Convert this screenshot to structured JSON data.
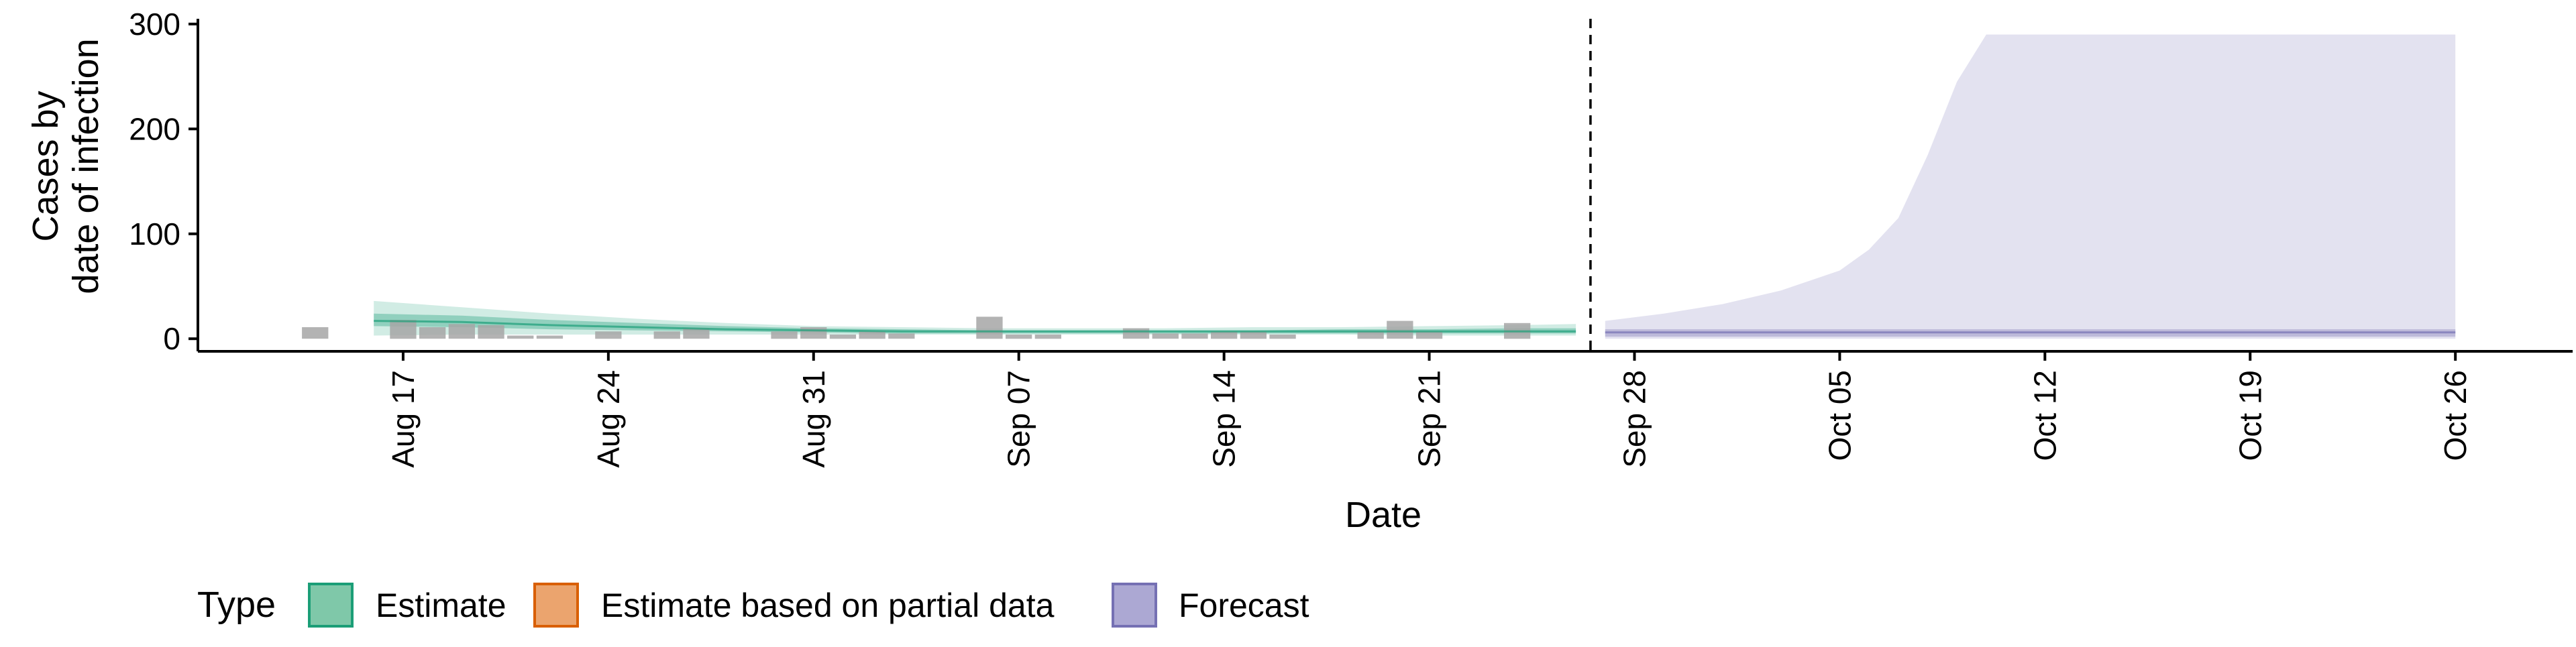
{
  "chart_data": {
    "type": "area",
    "xlabel": "Date",
    "ylabel_lines": [
      "Cases by",
      "date of infection"
    ],
    "x_range": [
      "2020-08-10",
      "2020-10-30"
    ],
    "ylim": [
      -12,
      305
    ],
    "y_ticks": [
      0,
      100,
      200,
      300
    ],
    "x_ticks": [
      {
        "date": "2020-08-17",
        "label": "Aug 17"
      },
      {
        "date": "2020-08-24",
        "label": "Aug 24"
      },
      {
        "date": "2020-08-31",
        "label": "Aug 31"
      },
      {
        "date": "2020-09-07",
        "label": "Sep 07"
      },
      {
        "date": "2020-09-14",
        "label": "Sep 14"
      },
      {
        "date": "2020-09-21",
        "label": "Sep 21"
      },
      {
        "date": "2020-09-28",
        "label": "Sep 28"
      },
      {
        "date": "2020-10-05",
        "label": "Oct 05"
      },
      {
        "date": "2020-10-12",
        "label": "Oct 12"
      },
      {
        "date": "2020-10-19",
        "label": "Oct 19"
      },
      {
        "date": "2020-10-26",
        "label": "Oct 26"
      }
    ],
    "forecast_cutoff": "2020-09-26",
    "grid": false,
    "legend": {
      "title": "Type",
      "position": "bottom-left",
      "entries": [
        {
          "label": "Estimate",
          "fill": "#7fc8a9",
          "stroke": "#1b9e77"
        },
        {
          "label": "Estimate based on partial data",
          "fill": "#eba46e",
          "stroke": "#d95f02"
        },
        {
          "label": "Forecast",
          "fill": "#aca8d3",
          "stroke": "#7570b3"
        }
      ]
    },
    "observed_cases": {
      "color": "#a6a6a6",
      "dates": [
        "2020-08-14",
        "2020-08-15",
        "2020-08-16",
        "2020-08-17",
        "2020-08-18",
        "2020-08-19",
        "2020-08-20",
        "2020-08-21",
        "2020-08-22",
        "2020-08-23",
        "2020-08-24",
        "2020-08-25",
        "2020-08-26",
        "2020-08-27",
        "2020-08-28",
        "2020-08-29",
        "2020-08-30",
        "2020-08-31",
        "2020-09-01",
        "2020-09-02",
        "2020-09-03",
        "2020-09-04",
        "2020-09-05",
        "2020-09-06",
        "2020-09-07",
        "2020-09-08",
        "2020-09-09",
        "2020-09-10",
        "2020-09-11",
        "2020-09-12",
        "2020-09-13",
        "2020-09-14",
        "2020-09-15",
        "2020-09-16",
        "2020-09-17",
        "2020-09-18",
        "2020-09-19",
        "2020-09-20",
        "2020-09-21",
        "2020-09-22",
        "2020-09-23",
        "2020-09-24",
        "2020-09-25"
      ],
      "values": [
        11,
        0,
        0,
        18,
        11,
        14,
        13,
        3,
        3,
        0,
        7,
        0,
        7,
        10,
        0,
        0,
        7,
        11,
        4,
        7,
        5,
        0,
        0,
        21,
        4,
        4,
        0,
        0,
        10,
        5,
        5,
        7,
        7,
        4,
        0,
        0,
        7,
        17,
        7,
        0,
        0,
        15,
        0
      ]
    },
    "series": [
      {
        "name": "Estimate",
        "color": "#1b9e77",
        "dates": [
          "2020-08-16",
          "2020-08-19",
          "2020-08-22",
          "2020-08-25",
          "2020-08-28",
          "2020-08-31",
          "2020-09-03",
          "2020-09-06",
          "2020-09-09",
          "2020-09-12",
          "2020-09-15",
          "2020-09-18",
          "2020-09-21",
          "2020-09-24",
          "2020-09-26"
        ],
        "median": [
          17,
          16,
          13,
          11,
          9,
          8,
          7,
          7,
          7,
          7,
          7,
          7,
          7,
          7,
          7
        ],
        "lower_90": [
          3,
          4,
          4,
          4,
          4,
          4,
          4,
          4,
          4,
          4,
          4,
          4,
          3,
          3,
          3
        ],
        "upper_90": [
          36,
          30,
          24,
          19,
          15,
          12,
          11,
          10,
          10,
          10,
          11,
          11,
          12,
          13,
          14
        ],
        "lower_50": [
          12,
          11,
          9,
          8,
          7,
          6,
          5,
          5,
          5,
          5,
          5,
          5,
          5,
          5,
          5
        ],
        "upper_50": [
          24,
          22,
          18,
          15,
          12,
          10,
          9,
          8,
          8,
          8,
          8,
          9,
          9,
          10,
          10
        ]
      },
      {
        "name": "Forecast",
        "color": "#7570b3",
        "dates": [
          "2020-09-27",
          "2020-09-29",
          "2020-10-01",
          "2020-10-03",
          "2020-10-05",
          "2020-10-06",
          "2020-10-07",
          "2020-10-08",
          "2020-10-09",
          "2020-10-10",
          "2020-10-11",
          "2020-10-15",
          "2020-10-20",
          "2020-10-26"
        ],
        "median": [
          6,
          6,
          6,
          6,
          6,
          6,
          6,
          6,
          6,
          6,
          6,
          6,
          6,
          6
        ],
        "lower_90": [
          0,
          0,
          0,
          0,
          0,
          0,
          0,
          0,
          0,
          0,
          0,
          0,
          0,
          0
        ],
        "upper_90": [
          17,
          24,
          33,
          46,
          65,
          85,
          115,
          175,
          245,
          290,
          290,
          290,
          290,
          290
        ],
        "lower_50": [
          2,
          2,
          2,
          2,
          2,
          2,
          2,
          2,
          2,
          2,
          2,
          2,
          2,
          2
        ],
        "upper_50": [
          9,
          9,
          9,
          9,
          9,
          9,
          9,
          9,
          9,
          9,
          9,
          9,
          9,
          9
        ]
      }
    ]
  }
}
